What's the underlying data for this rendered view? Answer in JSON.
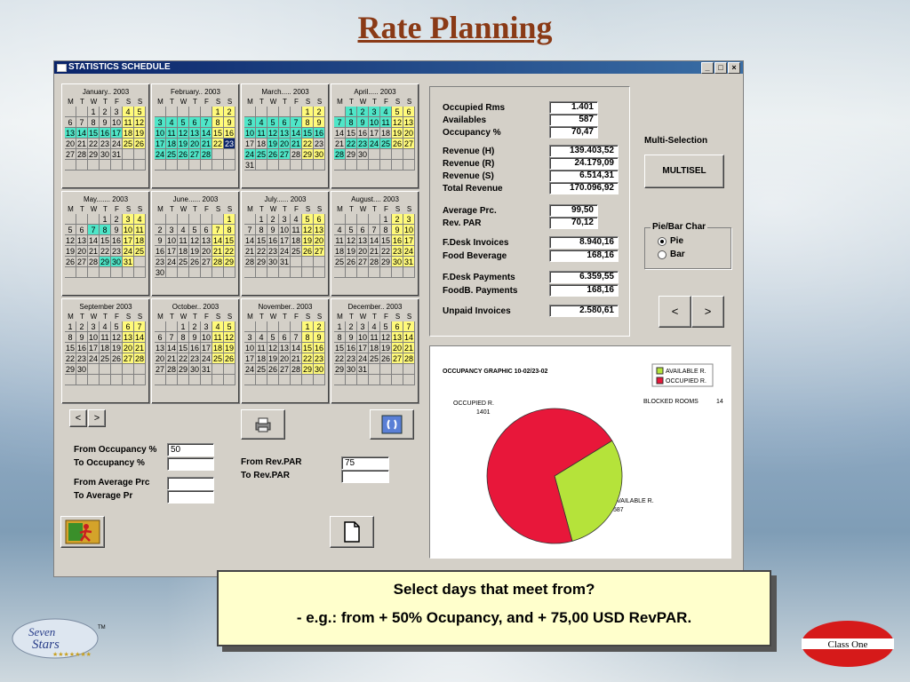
{
  "slide_title": "Rate Planning",
  "window": {
    "title": "STATISTICS SCHEDULE",
    "controls": [
      "_",
      "×"
    ]
  },
  "weekday_header": [
    "M",
    "T",
    "W",
    "T",
    "F",
    "S",
    "S"
  ],
  "months": [
    {
      "name": "January.. 2003",
      "start": 2,
      "days": 31,
      "yellow": [
        4,
        5,
        11,
        12,
        18,
        19,
        25,
        26
      ],
      "cyan": [
        13,
        14,
        15,
        16,
        17
      ],
      "sel": []
    },
    {
      "name": "February.. 2003",
      "start": 5,
      "days": 28,
      "yellow": [
        1,
        2,
        8,
        9,
        15,
        16,
        22
      ],
      "cyan": [
        3,
        4,
        5,
        6,
        7,
        10,
        11,
        12,
        13,
        14,
        17,
        18,
        19,
        20,
        21,
        24,
        25,
        26,
        27,
        28
      ],
      "sel": [
        23
      ]
    },
    {
      "name": "March..... 2003",
      "start": 5,
      "days": 31,
      "yellow": [
        1,
        2,
        8,
        9,
        22,
        29,
        30
      ],
      "cyan": [
        3,
        4,
        5,
        6,
        7,
        10,
        11,
        12,
        13,
        14,
        15,
        16,
        19,
        20,
        21,
        24,
        25,
        26,
        27
      ],
      "sel": []
    },
    {
      "name": "April..... 2003",
      "start": 1,
      "days": 30,
      "yellow": [
        5,
        6,
        12,
        13,
        19,
        20,
        26,
        27
      ],
      "cyan": [
        1,
        2,
        3,
        4,
        7,
        8,
        9,
        10,
        11,
        22,
        23,
        24,
        25,
        28
      ],
      "sel": []
    },
    {
      "name": "May....... 2003",
      "start": 3,
      "days": 31,
      "yellow": [
        3,
        4,
        10,
        11,
        17,
        18,
        24,
        25,
        31
      ],
      "cyan": [
        7,
        8,
        29,
        30
      ],
      "sel": []
    },
    {
      "name": "June...... 2003",
      "start": 6,
      "days": 30,
      "yellow": [
        1,
        7,
        8,
        14,
        15,
        21,
        22,
        28,
        29
      ],
      "cyan": [],
      "sel": []
    },
    {
      "name": "July...... 2003",
      "start": 1,
      "days": 31,
      "yellow": [
        5,
        6,
        12,
        13,
        19,
        20,
        26,
        27
      ],
      "cyan": [],
      "sel": []
    },
    {
      "name": "August.... 2003",
      "start": 4,
      "days": 31,
      "yellow": [
        2,
        3,
        9,
        10,
        16,
        17,
        23,
        24,
        30,
        31
      ],
      "cyan": [],
      "sel": []
    },
    {
      "name": "September 2003",
      "start": 0,
      "days": 30,
      "yellow": [
        6,
        7,
        13,
        14,
        20,
        21,
        27,
        28
      ],
      "cyan": [],
      "sel": []
    },
    {
      "name": "October.. 2003",
      "start": 2,
      "days": 31,
      "yellow": [
        4,
        5,
        11,
        12,
        18,
        19,
        25,
        26
      ],
      "cyan": [],
      "sel": []
    },
    {
      "name": "November.. 2003",
      "start": 5,
      "days": 30,
      "yellow": [
        1,
        2,
        8,
        9,
        15,
        16,
        22,
        23,
        29,
        30
      ],
      "cyan": [],
      "sel": []
    },
    {
      "name": "December.. 2003",
      "start": 0,
      "days": 31,
      "yellow": [
        6,
        7,
        13,
        14,
        20,
        21,
        27,
        28
      ],
      "cyan": [],
      "sel": []
    }
  ],
  "nav": {
    "prev": "<",
    "next": ">"
  },
  "filters": {
    "from_occupancy_label": "From Occupancy %",
    "to_occupancy_label": "To     Occupancy %",
    "from_occupancy_value": "50",
    "to_occupancy_value": "",
    "from_avg_label": "From Average Prc",
    "to_avg_label": "To     Average Pr",
    "from_avg_value": "",
    "to_avg_value": "",
    "from_revpar_label": "From Rev.PAR",
    "to_revpar_label": "To     Rev.PAR",
    "from_revpar_value": "75",
    "to_revpar_value": ""
  },
  "stats": [
    {
      "label": "Occupied Rms",
      "value": "1.401"
    },
    {
      "label": "Availables",
      "value": "587"
    },
    {
      "label": "Occupancy %",
      "value": "70,47"
    },
    {
      "label": "Revenue (H)",
      "value": "139.403,52"
    },
    {
      "label": "Revenue (R)",
      "value": "24.179,09"
    },
    {
      "label": "Revenue (S)",
      "value": "6.514,31"
    },
    {
      "label": "Total Revenue",
      "value": "170.096,92"
    },
    {
      "label": "Average Prc.",
      "value": "99,50"
    },
    {
      "label": "Rev. PAR",
      "value": "70,12"
    },
    {
      "label": "F.Desk Invoices",
      "value": "8.940,16"
    },
    {
      "label": "Food  Beverage",
      "value": "168,16"
    },
    {
      "label": "F.Desk Payments",
      "value": "6.359,55"
    },
    {
      "label": "FoodB. Payments",
      "value": "168,16"
    },
    {
      "label": "Unpaid Invoices",
      "value": "2.580,61"
    }
  ],
  "multiselection": {
    "label": "Multi-Selection",
    "button": "MULTISEL"
  },
  "chart_type": {
    "group_label": "Pie/Bar Char",
    "options": [
      "Pie",
      "Bar"
    ],
    "selected": "Pie"
  },
  "colors": {
    "available": "#b5e33a",
    "occupied": "#e8173a",
    "weekend": "#fffa7a",
    "highlight": "#4fe6c8"
  },
  "chart_data": {
    "type": "pie",
    "title": "OCCUPANCY GRAPHIC   10-02/23-02",
    "series": [
      {
        "name": "AVAILABLE R.",
        "value": 587
      },
      {
        "name": "OCCUPIED R.",
        "value": 1401
      }
    ],
    "legend": [
      "AVAILABLE R.",
      "OCCUPIED R."
    ],
    "legend_position": "top-right",
    "blocked_label": "BLOCKED ROOMS",
    "blocked_value": "14",
    "label_occupied": "OCCUPIED R.",
    "label_occupied_value": "1401",
    "label_available": "AVAILABLE R.",
    "label_available_value": "587"
  },
  "callout": {
    "line1": "Select days that meet from?",
    "line2": "- e.g.: from + 50% Ocupancy, and + 75,00 USD RevPAR."
  },
  "logo_left": {
    "text": "Seven Stars",
    "tm": "TM"
  },
  "logo_right": {
    "text": "Class One"
  }
}
